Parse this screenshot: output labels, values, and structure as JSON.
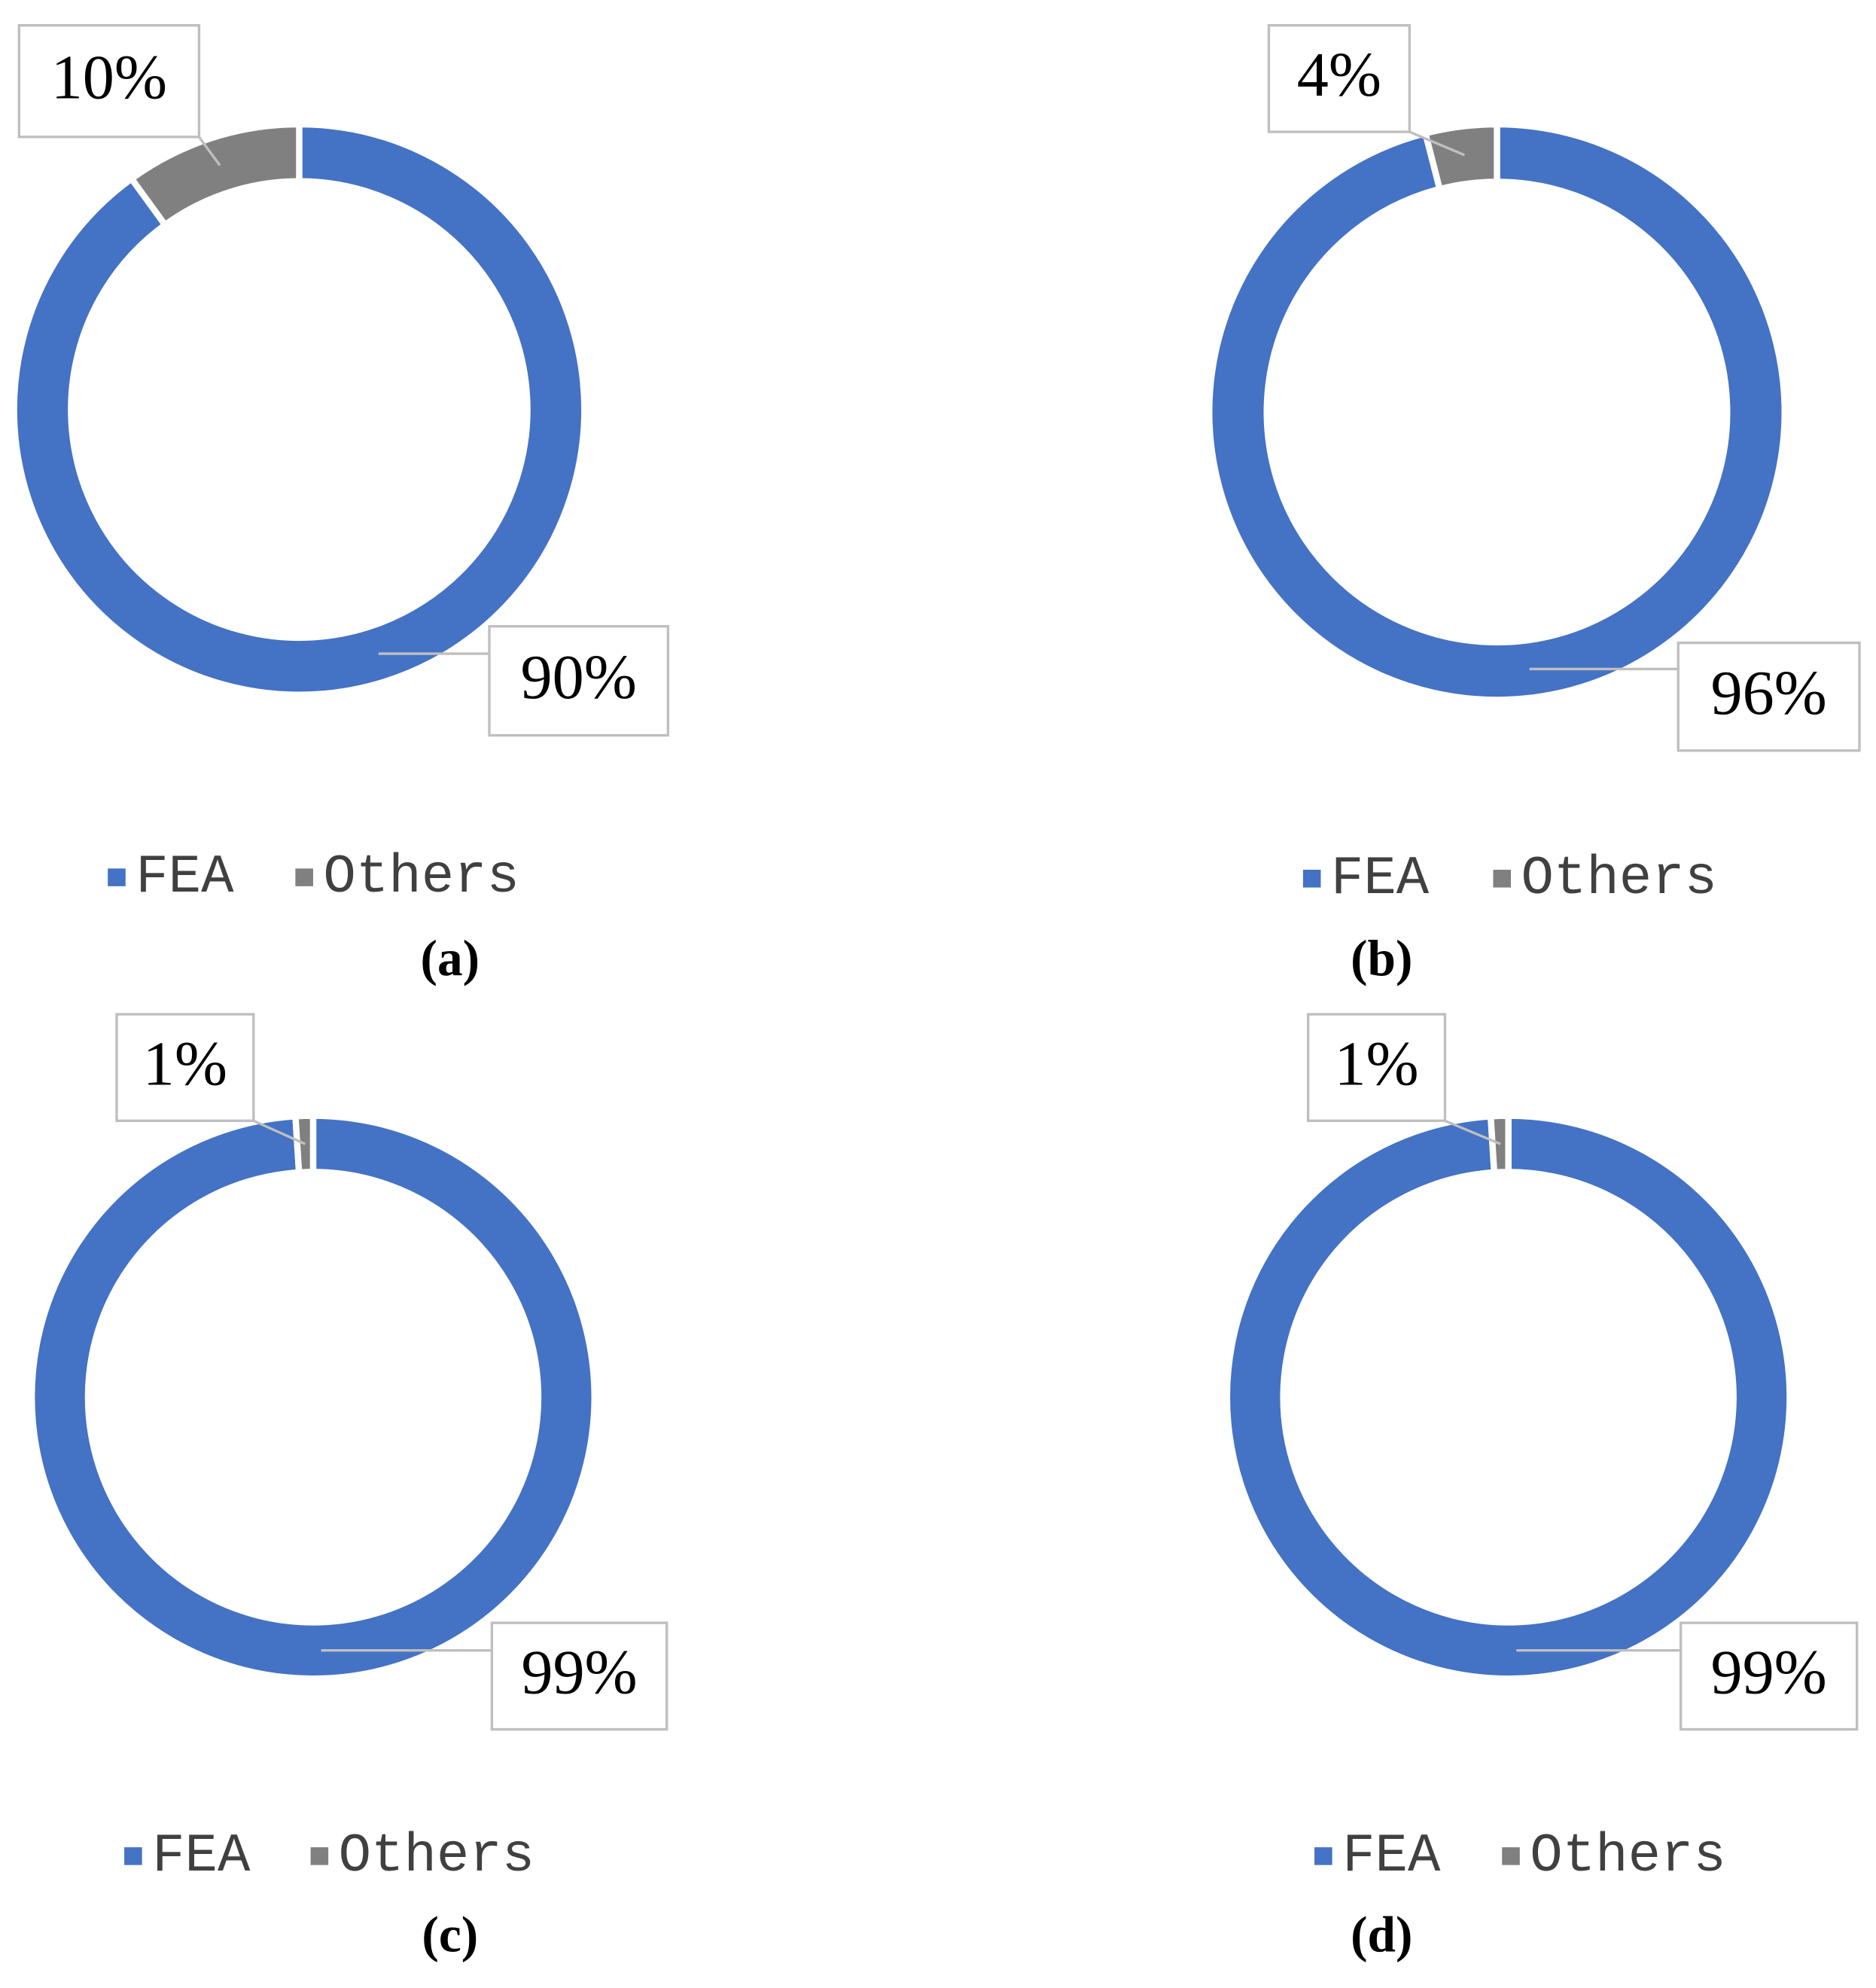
{
  "chart_data": [
    {
      "type": "donut",
      "categories": [
        "FEA",
        "Others"
      ],
      "values": [
        90,
        10
      ],
      "value_labels": [
        "90%",
        "10%"
      ],
      "colors": [
        "#4472c4",
        "#808080"
      ],
      "caption": "(a)"
    },
    {
      "type": "donut",
      "categories": [
        "FEA",
        "Others"
      ],
      "values": [
        96,
        4
      ],
      "value_labels": [
        "96%",
        "4%"
      ],
      "colors": [
        "#4472c4",
        "#808080"
      ],
      "caption": "(b)"
    },
    {
      "type": "donut",
      "categories": [
        "FEA",
        "Others"
      ],
      "values": [
        99,
        1
      ],
      "value_labels": [
        "99%",
        "1%"
      ],
      "colors": [
        "#4472c4",
        "#808080"
      ],
      "caption": "(c)"
    },
    {
      "type": "donut",
      "categories": [
        "FEA",
        "Others"
      ],
      "values": [
        99,
        1
      ],
      "value_labels": [
        "99%",
        "1%"
      ],
      "colors": [
        "#4472c4",
        "#808080"
      ],
      "caption": "(d)"
    }
  ]
}
